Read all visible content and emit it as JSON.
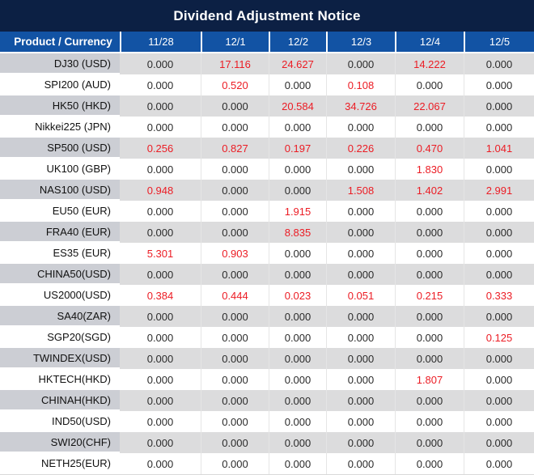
{
  "title": "Dividend Adjustment Notice",
  "chart_data": {
    "type": "table",
    "columns": [
      "Product / Currency",
      "11/28",
      "12/1",
      "12/2",
      "12/3",
      "12/4",
      "12/5"
    ],
    "rows": [
      {
        "product": "DJ30 (USD)",
        "values": [
          {
            "text": "0.000",
            "red": false
          },
          {
            "text": "17.116",
            "red": true
          },
          {
            "text": "24.627",
            "red": true
          },
          {
            "text": "0.000",
            "red": false
          },
          {
            "text": "14.222",
            "red": true
          },
          {
            "text": "0.000",
            "red": false
          }
        ]
      },
      {
        "product": "SPI200 (AUD)",
        "values": [
          {
            "text": "0.000",
            "red": false
          },
          {
            "text": "0.520",
            "red": true
          },
          {
            "text": "0.000",
            "red": false
          },
          {
            "text": "0.108",
            "red": true
          },
          {
            "text": "0.000",
            "red": false
          },
          {
            "text": "0.000",
            "red": false
          }
        ]
      },
      {
        "product": "HK50 (HKD)",
        "values": [
          {
            "text": "0.000",
            "red": false
          },
          {
            "text": "0.000",
            "red": false
          },
          {
            "text": "20.584",
            "red": true
          },
          {
            "text": "34.726",
            "red": true
          },
          {
            "text": "22.067",
            "red": true
          },
          {
            "text": "0.000",
            "red": false
          }
        ]
      },
      {
        "product": "Nikkei225 (JPN)",
        "values": [
          {
            "text": "0.000",
            "red": false
          },
          {
            "text": "0.000",
            "red": false
          },
          {
            "text": "0.000",
            "red": false
          },
          {
            "text": "0.000",
            "red": false
          },
          {
            "text": "0.000",
            "red": false
          },
          {
            "text": "0.000",
            "red": false
          }
        ]
      },
      {
        "product": "SP500 (USD)",
        "values": [
          {
            "text": "0.256",
            "red": true
          },
          {
            "text": "0.827",
            "red": true
          },
          {
            "text": "0.197",
            "red": true
          },
          {
            "text": "0.226",
            "red": true
          },
          {
            "text": "0.470",
            "red": true
          },
          {
            "text": "1.041",
            "red": true
          }
        ]
      },
      {
        "product": "UK100 (GBP)",
        "values": [
          {
            "text": "0.000",
            "red": false
          },
          {
            "text": "0.000",
            "red": false
          },
          {
            "text": "0.000",
            "red": false
          },
          {
            "text": "0.000",
            "red": false
          },
          {
            "text": "1.830",
            "red": true
          },
          {
            "text": "0.000",
            "red": false
          }
        ]
      },
      {
        "product": "NAS100 (USD)",
        "values": [
          {
            "text": "0.948",
            "red": true
          },
          {
            "text": "0.000",
            "red": false
          },
          {
            "text": "0.000",
            "red": false
          },
          {
            "text": "1.508",
            "red": true
          },
          {
            "text": "1.402",
            "red": true
          },
          {
            "text": "2.991",
            "red": true
          }
        ]
      },
      {
        "product": "EU50 (EUR)",
        "values": [
          {
            "text": "0.000",
            "red": false
          },
          {
            "text": "0.000",
            "red": false
          },
          {
            "text": "1.915",
            "red": true
          },
          {
            "text": "0.000",
            "red": false
          },
          {
            "text": "0.000",
            "red": false
          },
          {
            "text": "0.000",
            "red": false
          }
        ]
      },
      {
        "product": "FRA40 (EUR)",
        "values": [
          {
            "text": "0.000",
            "red": false
          },
          {
            "text": "0.000",
            "red": false
          },
          {
            "text": "8.835",
            "red": true
          },
          {
            "text": "0.000",
            "red": false
          },
          {
            "text": "0.000",
            "red": false
          },
          {
            "text": "0.000",
            "red": false
          }
        ]
      },
      {
        "product": "ES35 (EUR)",
        "values": [
          {
            "text": "5.301",
            "red": true
          },
          {
            "text": "0.903",
            "red": true
          },
          {
            "text": "0.000",
            "red": false
          },
          {
            "text": "0.000",
            "red": false
          },
          {
            "text": "0.000",
            "red": false
          },
          {
            "text": "0.000",
            "red": false
          }
        ]
      },
      {
        "product": "CHINA50(USD)",
        "values": [
          {
            "text": "0.000",
            "red": false
          },
          {
            "text": "0.000",
            "red": false
          },
          {
            "text": "0.000",
            "red": false
          },
          {
            "text": "0.000",
            "red": false
          },
          {
            "text": "0.000",
            "red": false
          },
          {
            "text": "0.000",
            "red": false
          }
        ]
      },
      {
        "product": "US2000(USD)",
        "values": [
          {
            "text": "0.384",
            "red": true
          },
          {
            "text": "0.444",
            "red": true
          },
          {
            "text": "0.023",
            "red": true
          },
          {
            "text": "0.051",
            "red": true
          },
          {
            "text": "0.215",
            "red": true
          },
          {
            "text": "0.333",
            "red": true
          }
        ]
      },
      {
        "product": "SA40(ZAR)",
        "values": [
          {
            "text": "0.000",
            "red": false
          },
          {
            "text": "0.000",
            "red": false
          },
          {
            "text": "0.000",
            "red": false
          },
          {
            "text": "0.000",
            "red": false
          },
          {
            "text": "0.000",
            "red": false
          },
          {
            "text": "0.000",
            "red": false
          }
        ]
      },
      {
        "product": "SGP20(SGD)",
        "values": [
          {
            "text": "0.000",
            "red": false
          },
          {
            "text": "0.000",
            "red": false
          },
          {
            "text": "0.000",
            "red": false
          },
          {
            "text": "0.000",
            "red": false
          },
          {
            "text": "0.000",
            "red": false
          },
          {
            "text": "0.125",
            "red": true
          }
        ]
      },
      {
        "product": "TWINDEX(USD)",
        "values": [
          {
            "text": "0.000",
            "red": false
          },
          {
            "text": "0.000",
            "red": false
          },
          {
            "text": "0.000",
            "red": false
          },
          {
            "text": "0.000",
            "red": false
          },
          {
            "text": "0.000",
            "red": false
          },
          {
            "text": "0.000",
            "red": false
          }
        ]
      },
      {
        "product": "HKTECH(HKD)",
        "values": [
          {
            "text": "0.000",
            "red": false
          },
          {
            "text": "0.000",
            "red": false
          },
          {
            "text": "0.000",
            "red": false
          },
          {
            "text": "0.000",
            "red": false
          },
          {
            "text": "1.807",
            "red": true
          },
          {
            "text": "0.000",
            "red": false
          }
        ]
      },
      {
        "product": "CHINAH(HKD)",
        "values": [
          {
            "text": "0.000",
            "red": false
          },
          {
            "text": "0.000",
            "red": false
          },
          {
            "text": "0.000",
            "red": false
          },
          {
            "text": "0.000",
            "red": false
          },
          {
            "text": "0.000",
            "red": false
          },
          {
            "text": "0.000",
            "red": false
          }
        ]
      },
      {
        "product": "IND50(USD)",
        "values": [
          {
            "text": "0.000",
            "red": false
          },
          {
            "text": "0.000",
            "red": false
          },
          {
            "text": "0.000",
            "red": false
          },
          {
            "text": "0.000",
            "red": false
          },
          {
            "text": "0.000",
            "red": false
          },
          {
            "text": "0.000",
            "red": false
          }
        ]
      },
      {
        "product": "SWI20(CHF)",
        "values": [
          {
            "text": "0.000",
            "red": false
          },
          {
            "text": "0.000",
            "red": false
          },
          {
            "text": "0.000",
            "red": false
          },
          {
            "text": "0.000",
            "red": false
          },
          {
            "text": "0.000",
            "red": false
          },
          {
            "text": "0.000",
            "red": false
          }
        ]
      },
      {
        "product": "NETH25(EUR)",
        "values": [
          {
            "text": "0.000",
            "red": false
          },
          {
            "text": "0.000",
            "red": false
          },
          {
            "text": "0.000",
            "red": false
          },
          {
            "text": "0.000",
            "red": false
          },
          {
            "text": "0.000",
            "red": false
          },
          {
            "text": "0.000",
            "red": false
          }
        ]
      }
    ]
  },
  "colors": {
    "title_bg": "#0c2044",
    "header_bg": "#1253a4",
    "stripe_label_bg": "#ccced4",
    "stripe_value_bg": "#dcdcdd",
    "red_value": "#ec1c24",
    "black_value": "#2b2b2b"
  }
}
